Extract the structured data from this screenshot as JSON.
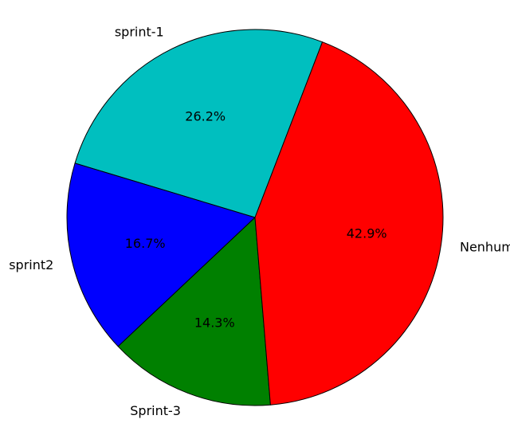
{
  "chart_data": {
    "type": "pie",
    "categories": [
      "sprint-1",
      "sprint2",
      "Sprint-3",
      "Nenhum sprint associado"
    ],
    "values": [
      26.2,
      16.7,
      14.3,
      42.9
    ],
    "percent_labels": [
      "26.2%",
      "16.7%",
      "14.3%",
      "42.9%"
    ],
    "colors": [
      "#00bfbf",
      "#0000ff",
      "#008000",
      "#ff0000"
    ],
    "start_angle_deg": 69,
    "direction": "counterclockwise",
    "edge_color": "#000000"
  }
}
